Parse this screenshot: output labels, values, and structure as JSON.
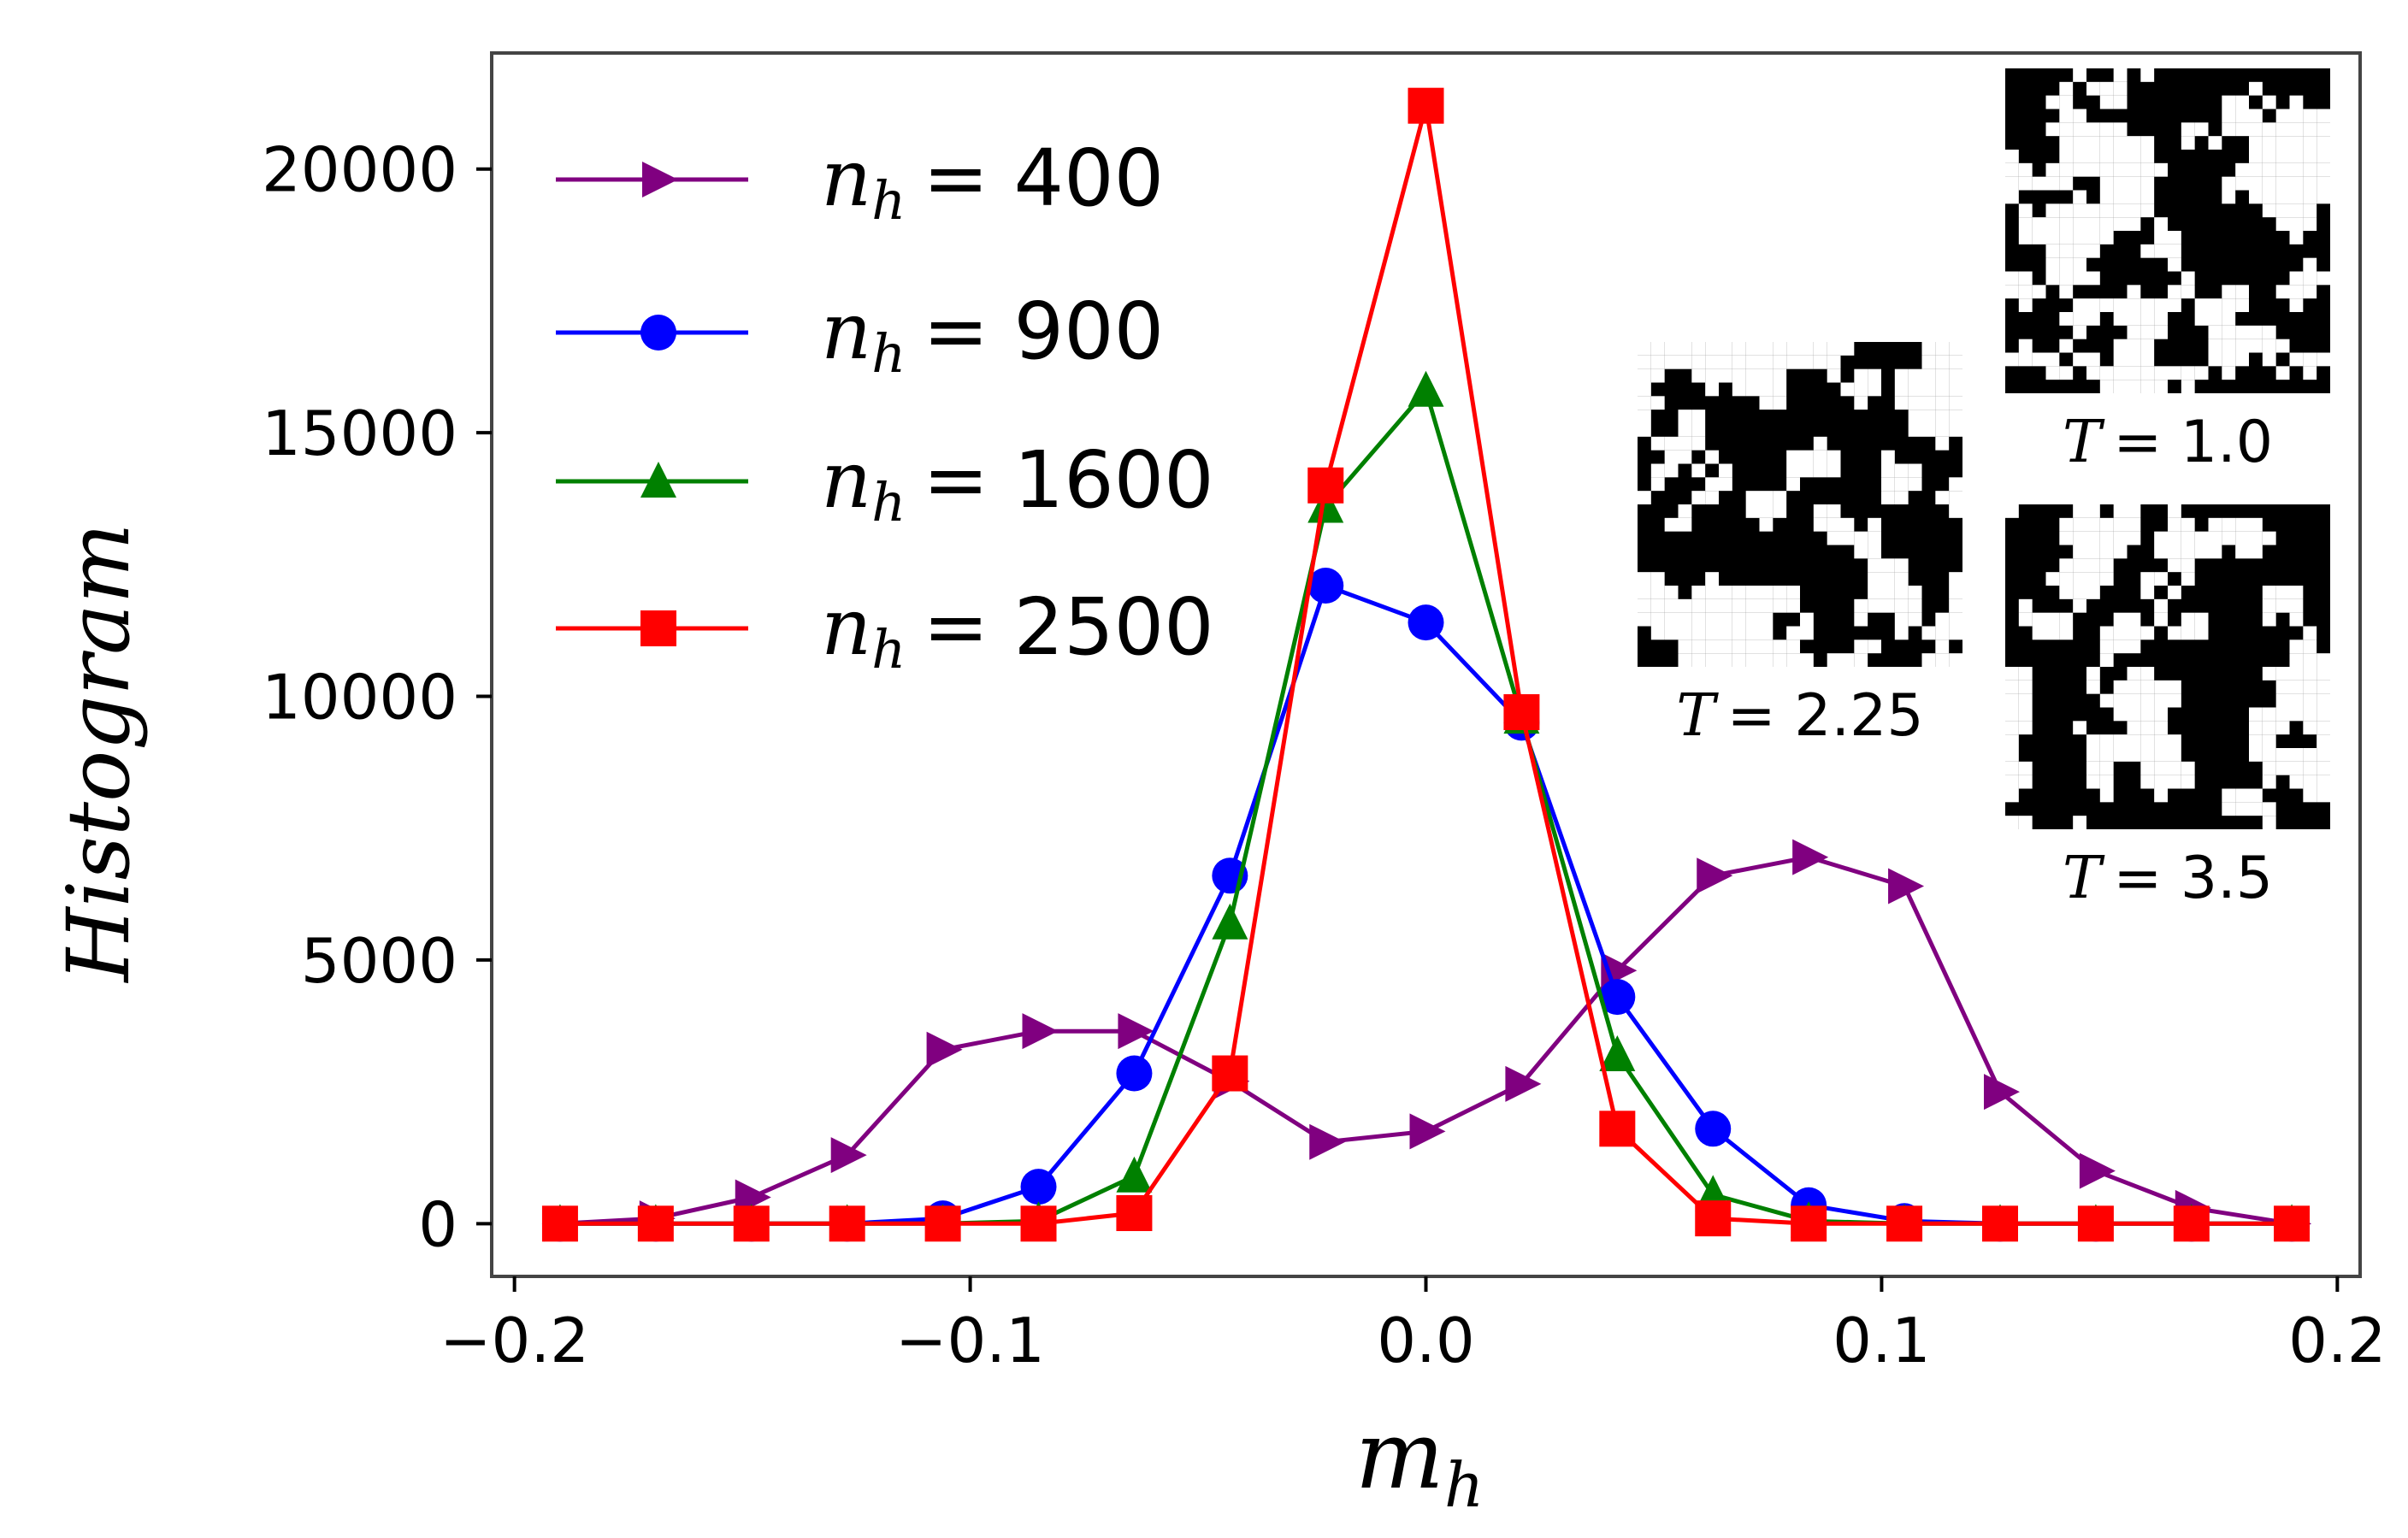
{
  "chart_data": {
    "type": "line",
    "title": "",
    "xlabel": "m",
    "xlabel_sub": "h",
    "ylabel": "Histogram",
    "xlim": [
      -0.205,
      0.205
    ],
    "ylim": [
      -1000,
      22200
    ],
    "xticks": [
      -0.2,
      -0.1,
      0.0,
      0.1,
      0.2
    ],
    "xtick_labels": [
      "−0.2",
      "−0.1",
      "0.0",
      "0.1",
      "0.2"
    ],
    "yticks": [
      0,
      5000,
      10000,
      15000,
      20000
    ],
    "ytick_labels": [
      "0",
      "5000",
      "10000",
      "15000",
      "20000"
    ],
    "legend_position": "upper-left",
    "x": [
      -0.19,
      -0.169,
      -0.148,
      -0.127,
      -0.106,
      -0.085,
      -0.064,
      -0.043,
      -0.022,
      0.0,
      0.021,
      0.042,
      0.063,
      0.084,
      0.105,
      0.126,
      0.147,
      0.168,
      0.19
    ],
    "series": [
      {
        "name": "n_h = 400",
        "label_main": "n",
        "label_sub": "h",
        "label_value": "= 400",
        "color": "#800080",
        "marker": "triangle-right",
        "values": [
          0,
          100,
          500,
          1300,
          3300,
          3650,
          3650,
          2700,
          1550,
          1750,
          2650,
          4800,
          6600,
          6950,
          6400,
          2500,
          1000,
          300,
          0
        ]
      },
      {
        "name": "n_h = 900",
        "label_main": "n",
        "label_sub": "h",
        "label_value": "= 900",
        "color": "#0000ff",
        "marker": "circle",
        "values": [
          0,
          0,
          0,
          0,
          100,
          700,
          2850,
          6600,
          12100,
          11400,
          9500,
          4300,
          1800,
          350,
          50,
          0,
          0,
          0,
          0
        ]
      },
      {
        "name": "n_h = 1600",
        "label_main": "n",
        "label_sub": "h",
        "label_value": "= 1600",
        "color": "#008000",
        "marker": "triangle-up",
        "values": [
          0,
          0,
          0,
          0,
          0,
          50,
          900,
          5700,
          13600,
          15800,
          9600,
          3200,
          550,
          50,
          0,
          0,
          0,
          0,
          0
        ]
      },
      {
        "name": "n_h = 2500",
        "label_main": "n",
        "label_sub": "h",
        "label_value": "= 2500",
        "color": "#ff0000",
        "marker": "square",
        "values": [
          0,
          0,
          0,
          0,
          0,
          0,
          200,
          2850,
          14000,
          21200,
          9700,
          1800,
          100,
          0,
          0,
          0,
          0,
          0,
          0
        ]
      }
    ],
    "insets": [
      {
        "caption": "T = 2.25",
        "caption_var": "T",
        "caption_value": "= 2.25"
      },
      {
        "caption": "T = 1.0",
        "caption_var": "T",
        "caption_value": "= 1.0"
      },
      {
        "caption": "T = 3.5",
        "caption_var": "T",
        "caption_value": "= 3.5"
      }
    ]
  }
}
